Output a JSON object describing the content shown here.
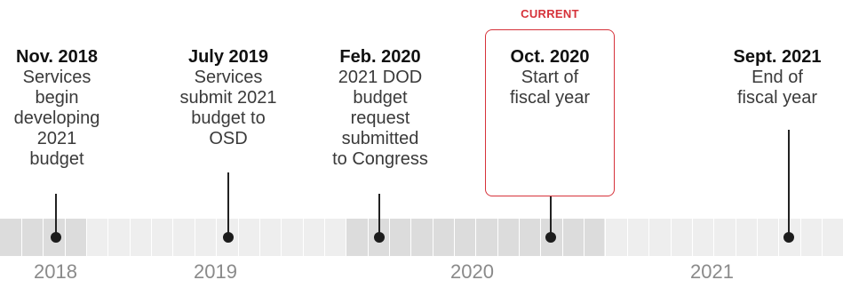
{
  "current_label": "CURRENT",
  "events": [
    {
      "date": "Nov. 2018",
      "desc": [
        "Services",
        "begin",
        "developing",
        "2021",
        "budget"
      ]
    },
    {
      "date": "July 2019",
      "desc": [
        "Services",
        "submit 2021",
        "budget to",
        "OSD"
      ]
    },
    {
      "date": "Feb. 2020",
      "desc": [
        "2021 DOD",
        "budget",
        "request",
        "submitted",
        "to Congress"
      ]
    },
    {
      "date": "Oct. 2020",
      "desc": [
        "Start of",
        "fiscal year"
      ]
    },
    {
      "date": "Sept. 2021",
      "desc": [
        "End of",
        "fiscal year"
      ]
    }
  ],
  "years": [
    "2018",
    "2019",
    "2020",
    "2021"
  ],
  "colors": {
    "accent": "#d6323a",
    "band_dark": "#dcdcdc",
    "band_light": "#eeeeee"
  }
}
